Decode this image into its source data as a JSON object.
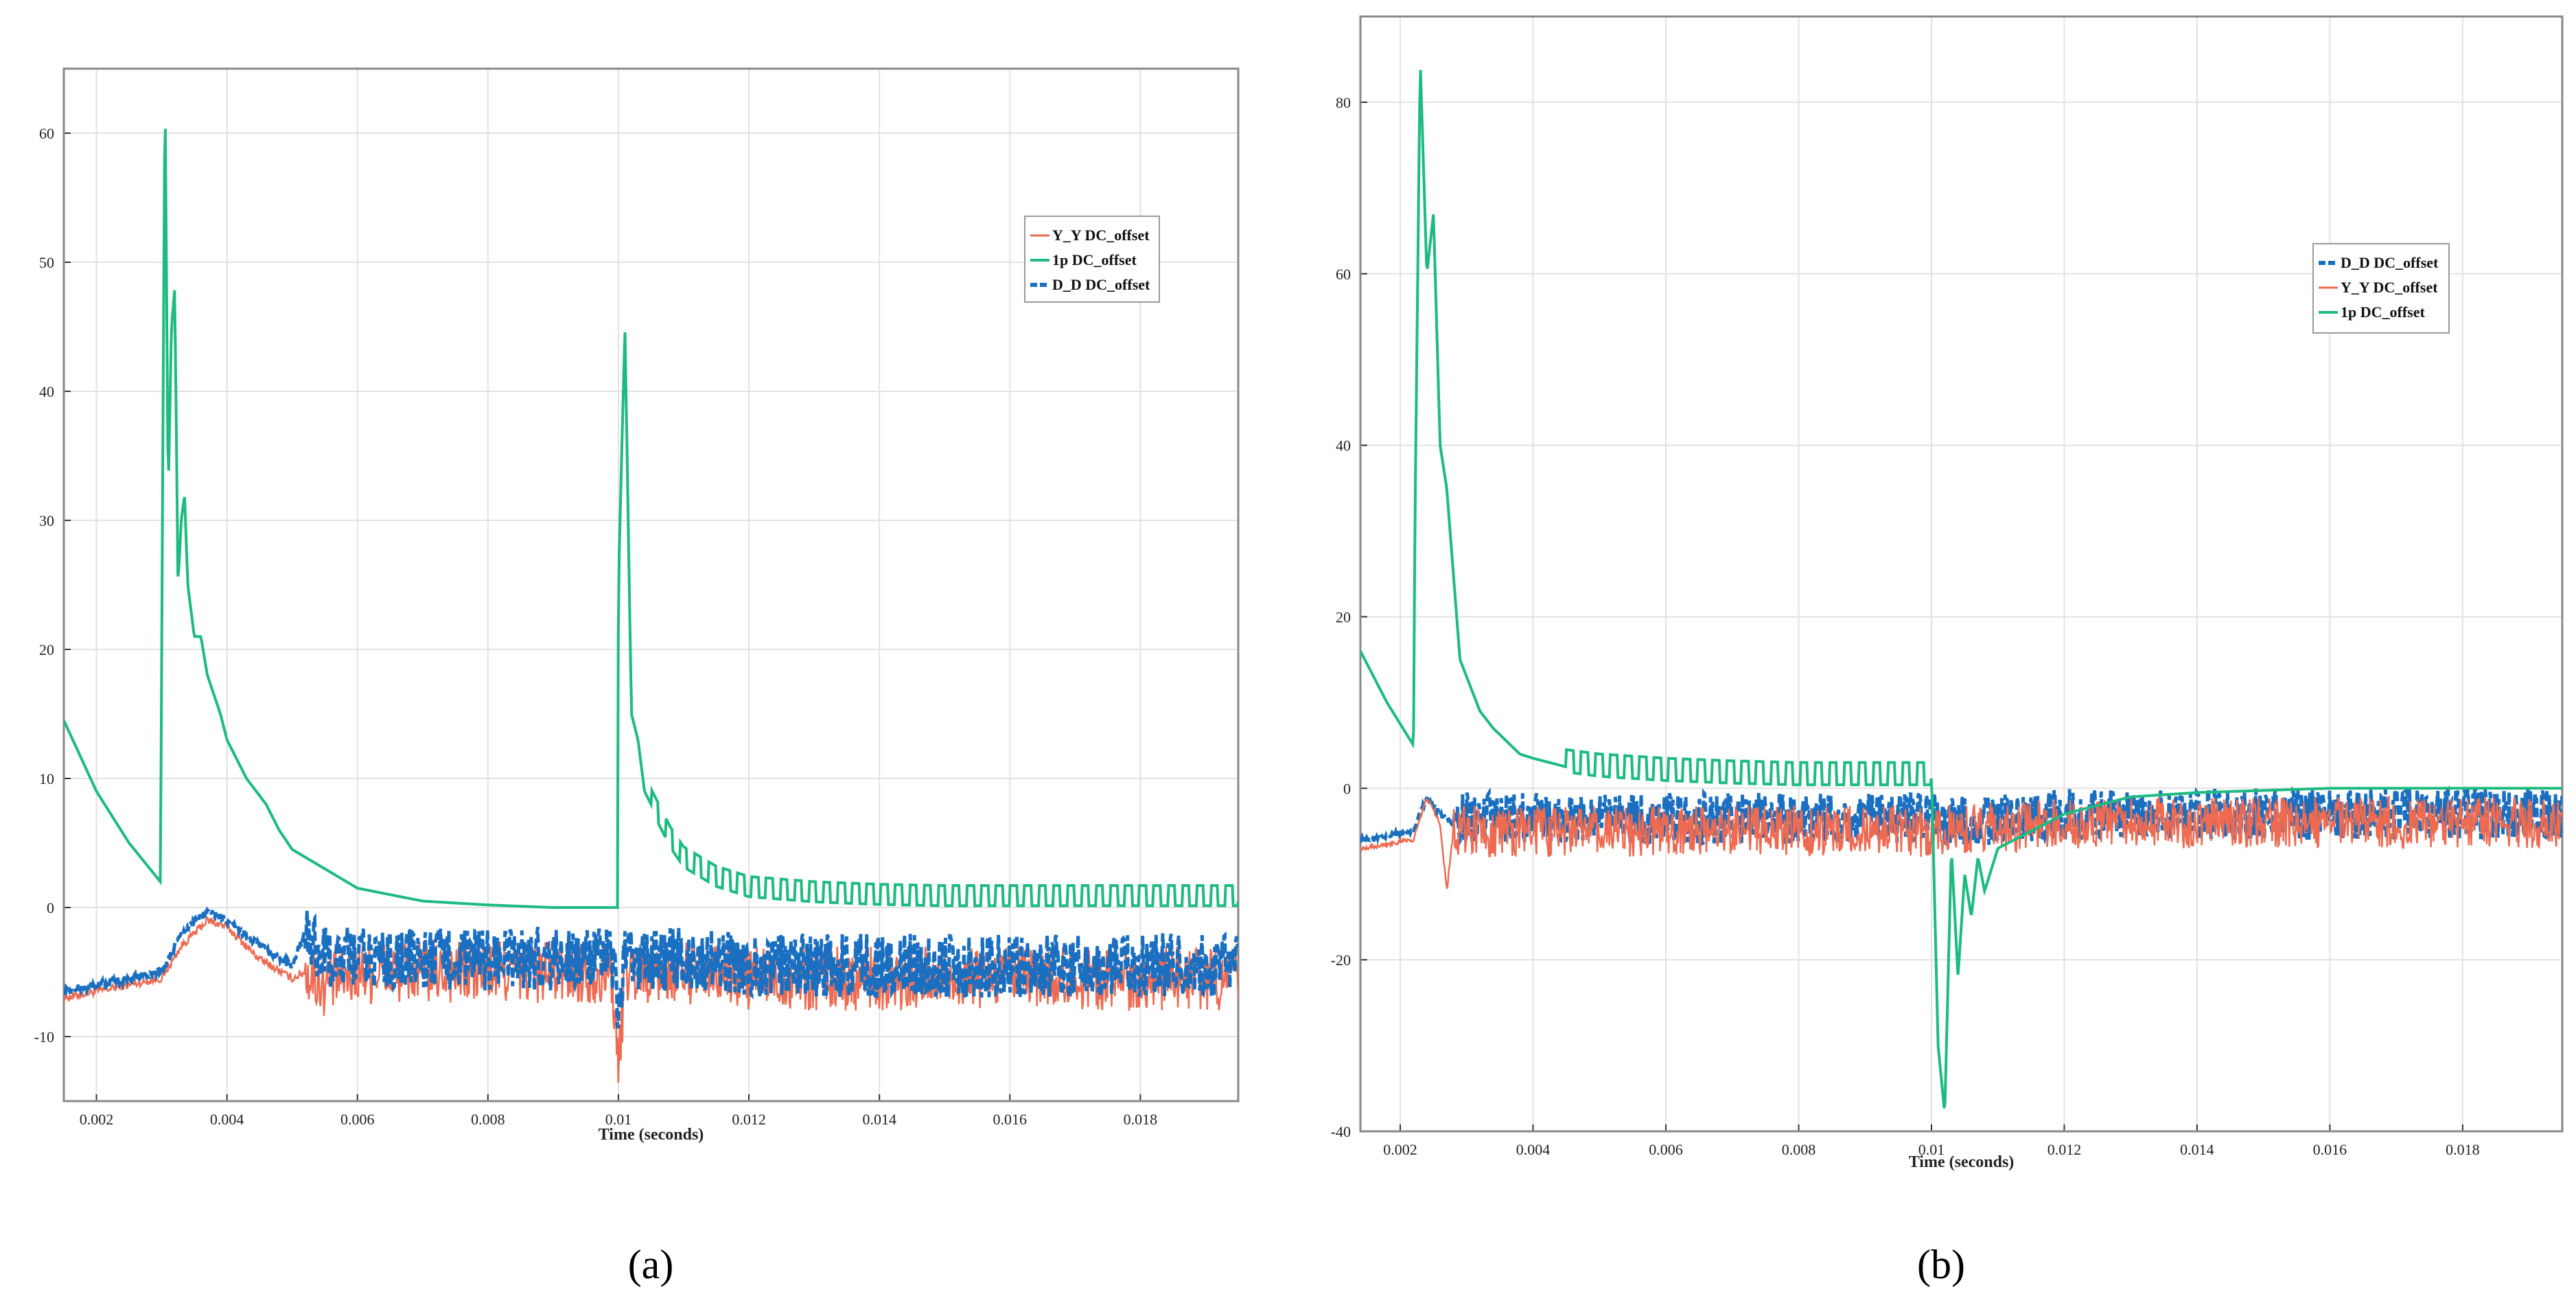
{
  "colors": {
    "yy": "#ee6a50",
    "p1": "#1dbb80",
    "dd": "#1a6fc0",
    "grid": "#e2e2e2",
    "axis": "#888888"
  },
  "chart_data": [
    {
      "type": "line",
      "caption": "(a)",
      "xlabel": "Time (seconds)",
      "xlim": [
        0.0015,
        0.0195
      ],
      "ylim": [
        -15,
        65
      ],
      "xticks": [
        "0.002",
        "0.004",
        "0.006",
        "0.008",
        "0.01",
        "0.012",
        "0.014",
        "0.016",
        "0.018"
      ],
      "yticks": [
        "-10",
        "0",
        "10",
        "20",
        "30",
        "40",
        "50",
        "60"
      ],
      "legend": [
        "Y_Y DC_offset",
        "1p DC_offset",
        "D_D DC_offset"
      ],
      "series": [
        {
          "name": "Y_Y DC_offset",
          "key": "yy",
          "x": [
            0.0015,
            0.003,
            0.0033,
            0.0037,
            0.004,
            0.0045,
            0.005,
            0.0052,
            0.0055,
            0.006,
            0.007,
            0.008,
            0.009,
            0.0099,
            0.01,
            0.0101,
            0.011,
            0.012,
            0.013,
            0.014,
            0.015,
            0.016,
            0.017,
            0.018,
            0.0195
          ],
          "y": [
            -7,
            -5.5,
            -3,
            -1,
            -1.5,
            -4,
            -5.5,
            -5,
            -6,
            -5,
            -5,
            -5,
            -5,
            -5,
            -13,
            -5,
            -5,
            -5.5,
            -5.5,
            -5.5,
            -5.5,
            -5.5,
            -5.5,
            -5.5,
            -5.5
          ]
        },
        {
          "name": "1p DC_offset",
          "key": "p1",
          "x": [
            0.0015,
            0.002,
            0.0025,
            0.00298,
            0.003,
            0.00305,
            0.0031,
            0.00315,
            0.0032,
            0.00325,
            0.0033,
            0.00335,
            0.0034,
            0.0035,
            0.0036,
            0.0037,
            0.0039,
            0.004,
            0.0043,
            0.0046,
            0.0048,
            0.005,
            0.0055,
            0.006,
            0.007,
            0.008,
            0.009,
            0.00999,
            0.01,
            0.0101,
            0.0102,
            0.0103,
            0.0104,
            0.0106,
            0.0108,
            0.011,
            0.0115,
            0.012,
            0.013,
            0.014,
            0.015,
            0.016,
            0.017,
            0.018,
            0.0195
          ],
          "y": [
            14.5,
            9,
            5,
            2,
            20,
            64,
            32,
            45,
            48,
            25,
            30,
            32,
            25,
            21,
            21,
            18,
            15,
            13,
            10,
            8,
            6,
            4.5,
            3,
            1.5,
            0.5,
            0.2,
            0,
            0,
            25,
            45,
            15,
            13,
            9,
            7,
            5,
            3.5,
            2,
            1.2,
            0.8,
            0.6,
            0.5,
            0.5,
            0.5,
            0.5,
            0.5
          ]
        },
        {
          "name": "D_D DC_offset",
          "key": "dd",
          "x": [
            0.0015,
            0.003,
            0.0033,
            0.0037,
            0.004,
            0.0045,
            0.005,
            0.0052,
            0.0055,
            0.006,
            0.007,
            0.008,
            0.009,
            0.0099,
            0.01,
            0.0101,
            0.011,
            0.012,
            0.013,
            0.014,
            0.015,
            0.016,
            0.017,
            0.018,
            0.0195
          ],
          "y": [
            -6.5,
            -5,
            -2,
            -0.3,
            -1,
            -3,
            -4.5,
            -2,
            -4,
            -4,
            -4,
            -4,
            -4,
            -4,
            -8,
            -4,
            -4,
            -4.5,
            -4.5,
            -4.5,
            -4.5,
            -4.5,
            -4.5,
            -4.5,
            -4.5
          ]
        }
      ]
    },
    {
      "type": "line",
      "caption": "(b)",
      "xlabel": "Time (seconds)",
      "xlim": [
        0.0014,
        0.0195
      ],
      "ylim": [
        -40,
        90
      ],
      "xticks": [
        "0.002",
        "0.004",
        "0.006",
        "0.008",
        "0.01",
        "0.012",
        "0.014",
        "0.016",
        "0.018"
      ],
      "yticks": [
        "-40",
        "-20",
        "0",
        "20",
        "40",
        "60",
        "80"
      ],
      "legend": [
        "D_D DC_offset",
        "Y_Y DC_offset",
        "1p DC_offset"
      ],
      "series": [
        {
          "name": "D_D DC_offset",
          "key": "dd",
          "x": [
            0.0014,
            0.0022,
            0.0024,
            0.0026,
            0.0028,
            0.003,
            0.004,
            0.006,
            0.008,
            0.01,
            0.0102,
            0.012,
            0.014,
            0.016,
            0.018,
            0.0195
          ],
          "y": [
            -6,
            -5,
            -1,
            -3,
            -4,
            -3.5,
            -3.5,
            -3.5,
            -3.5,
            -3.5,
            -4,
            -3,
            -3,
            -3,
            -3,
            -3
          ]
        },
        {
          "name": "Y_Y DC_offset",
          "key": "yy",
          "x": [
            0.0014,
            0.0022,
            0.0024,
            0.0026,
            0.0027,
            0.0028,
            0.003,
            0.004,
            0.006,
            0.008,
            0.01,
            0.0102,
            0.012,
            0.014,
            0.016,
            0.018,
            0.0195
          ],
          "y": [
            -7,
            -6,
            -1,
            -4,
            -12,
            -5,
            -5,
            -5,
            -5,
            -5,
            -5,
            -5,
            -4,
            -4,
            -4,
            -4,
            -4
          ]
        },
        {
          "name": "1p DC_offset",
          "key": "p1",
          "x": [
            0.0014,
            0.0018,
            0.0022,
            0.00222,
            0.0023,
            0.0024,
            0.0025,
            0.0026,
            0.0027,
            0.0028,
            0.0029,
            0.003,
            0.0032,
            0.0034,
            0.0036,
            0.0038,
            0.004,
            0.0045,
            0.005,
            0.006,
            0.007,
            0.008,
            0.009,
            0.00999,
            0.01,
            0.0101,
            0.0102,
            0.0103,
            0.0104,
            0.0105,
            0.0106,
            0.0107,
            0.0108,
            0.011,
            0.0115,
            0.012,
            0.013,
            0.014,
            0.016,
            0.018,
            0.0195
          ],
          "y": [
            16,
            10,
            5,
            30,
            85,
            60,
            67,
            40,
            35,
            25,
            15,
            13,
            9,
            7,
            5.5,
            4,
            3.5,
            2.5,
            2,
            1.5,
            1.2,
            1,
            1,
            1,
            2,
            -30,
            -38,
            -7,
            -22,
            -10,
            -15,
            -8,
            -12,
            -7,
            -5,
            -3,
            -1,
            -0.5,
            0,
            0,
            0
          ]
        }
      ]
    }
  ]
}
